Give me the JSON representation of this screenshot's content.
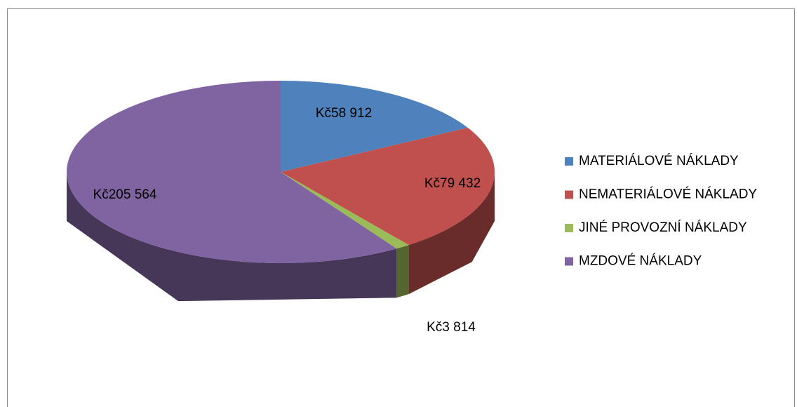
{
  "chart_data": {
    "type": "pie",
    "categories": [
      "MATERIÁLOVÉ NÁKLADY",
      "NEMATERIÁLOVÉ NÁKLADY",
      "JINÉ PROVOZNÍ NÁKLADY",
      "MZDOVÉ NÁKLADY"
    ],
    "values": [
      58912,
      79432,
      3814,
      205564
    ],
    "value_labels": [
      "Kč58 912",
      "Kč79 432",
      "Kč3 814",
      "Kč205 564"
    ],
    "colors": [
      "#4f81bd",
      "#c0504d",
      "#9bbb59",
      "#8064a2"
    ],
    "legend": "right"
  }
}
